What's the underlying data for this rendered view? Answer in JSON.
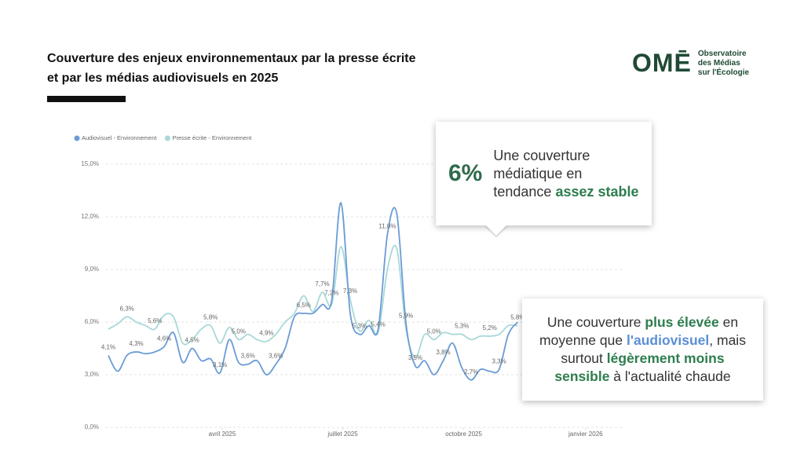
{
  "header": {
    "title_lines": [
      "Couverture des enjeux environnementaux par la presse écrite",
      "et par les médias audiovisuels en 2025"
    ]
  },
  "logo": {
    "mark": "OMĒ",
    "lines": [
      "Observatoire",
      "des Médias",
      "sur l'Écologie"
    ]
  },
  "chart_data": {
    "type": "line",
    "categories": [
      null,
      null,
      null,
      null,
      null,
      null,
      null,
      null,
      null,
      null,
      null,
      null,
      null,
      null,
      null,
      null,
      null,
      null,
      null,
      null,
      null,
      null,
      null,
      null,
      null,
      null,
      null,
      null,
      null,
      null,
      null,
      null,
      null,
      null,
      null,
      null,
      null,
      null,
      null,
      null,
      null,
      null,
      null,
      null,
      null
    ],
    "xlim": [
      -0.25,
      55.45
    ],
    "xticks": [
      {
        "value": 12.24,
        "label": "avril 2025"
      },
      {
        "value": 25.2,
        "label": "juillet 2025"
      },
      {
        "value": 38.2,
        "label": "octobre 2025"
      },
      {
        "value": 51.3,
        "label": "janvier 2026"
      }
    ],
    "ylim": [
      0,
      15
    ],
    "yticks": [
      {
        "value": 0,
        "label": "0,0%"
      },
      {
        "value": 3,
        "label": "3,0%"
      },
      {
        "value": 6,
        "label": "6,0%"
      },
      {
        "value": 9,
        "label": "9,0%"
      },
      {
        "value": 12,
        "label": "12,0%"
      },
      {
        "value": 15,
        "label": "15,0%"
      }
    ],
    "grid": true,
    "series": [
      {
        "name": "Audiovisuel - Environnement",
        "color": "#6b9bd6",
        "values": [
          4.1,
          3.2,
          4.1,
          4.3,
          4.2,
          4.3,
          4.6,
          5.4,
          3.7,
          4.5,
          3.8,
          3.9,
          3.1,
          5.0,
          3.7,
          3.6,
          3.8,
          3.0,
          3.6,
          4.5,
          6.3,
          6.5,
          6.5,
          7.0,
          7.2,
          12.8,
          6.5,
          5.3,
          5.8,
          5.6,
          11.0,
          12.2,
          5.9,
          3.5,
          3.8,
          3.0,
          3.8,
          4.8,
          3.4,
          2.7,
          3.3,
          3.2,
          3.3,
          5.3,
          6.0
        ],
        "value_labels": [
          "4,1%",
          null,
          null,
          "4,3%",
          null,
          null,
          "4,6%",
          null,
          null,
          "4,5%",
          null,
          null,
          "3,1%",
          null,
          null,
          "3,6%",
          null,
          null,
          "3,6%",
          null,
          null,
          "6,5%",
          null,
          null,
          "7,2%",
          null,
          null,
          "5,3%",
          null,
          null,
          "11,0%",
          null,
          "5,9%",
          "3,5%",
          null,
          null,
          "3,8%",
          null,
          null,
          "2,7%",
          null,
          null,
          "3,3%",
          null,
          null
        ]
      },
      {
        "name": "Presse écrite - Environnement",
        "color": "#a8d8d8",
        "values": [
          5.6,
          5.9,
          6.3,
          6.0,
          5.8,
          5.6,
          6.4,
          6.3,
          4.8,
          5.0,
          5.6,
          5.8,
          4.8,
          5.7,
          5.0,
          5.3,
          5.0,
          4.9,
          5.3,
          6.0,
          6.5,
          7.5,
          6.6,
          7.7,
          7.0,
          10.3,
          7.3,
          5.5,
          6.1,
          5.4,
          9.0,
          10.2,
          5.6,
          4.0,
          5.3,
          5.0,
          5.4,
          5.3,
          5.3,
          5.0,
          5.2,
          5.2,
          5.3,
          5.8,
          5.8
        ],
        "value_labels": [
          null,
          null,
          "6,3%",
          null,
          null,
          "5,6%",
          null,
          null,
          null,
          null,
          null,
          "5,8%",
          null,
          null,
          "5,0%",
          null,
          null,
          "4,9%",
          null,
          null,
          null,
          null,
          null,
          "7,7%",
          null,
          null,
          "7,3%",
          null,
          null,
          "5,4%",
          null,
          null,
          null,
          null,
          null,
          "5,0%",
          null,
          null,
          "5,3%",
          null,
          null,
          "5,2%",
          null,
          null,
          "5,8%"
        ]
      }
    ]
  },
  "callouts": [
    {
      "big": "6%",
      "lines": [
        [
          {
            "text": "Une couverture",
            "color": null
          }
        ],
        [
          {
            "text": "médiatique en",
            "color": null
          }
        ],
        [
          {
            "text": "tendance ",
            "color": null
          },
          {
            "text": "assez stable",
            "color": "#2e7d4f"
          }
        ]
      ]
    },
    {
      "lines": [
        [
          {
            "text": "Une couverture ",
            "color": null
          },
          {
            "text": "plus élevée",
            "color": "#2e7d4f"
          },
          {
            "text": " en",
            "color": null
          }
        ],
        [
          {
            "text": "moyenne que ",
            "color": null
          },
          {
            "text": "l'audiovisuel",
            "color": "#5b8fd6"
          },
          {
            "text": ", mais",
            "color": null
          }
        ],
        [
          {
            "text": "surtout ",
            "color": null
          },
          {
            "text": "légèrement moins",
            "color": "#2e7d4f"
          }
        ],
        [
          {
            "text": "sensible",
            "color": "#2e7d4f"
          },
          {
            "text": " à l'actualité chaude",
            "color": null
          }
        ]
      ]
    }
  ]
}
